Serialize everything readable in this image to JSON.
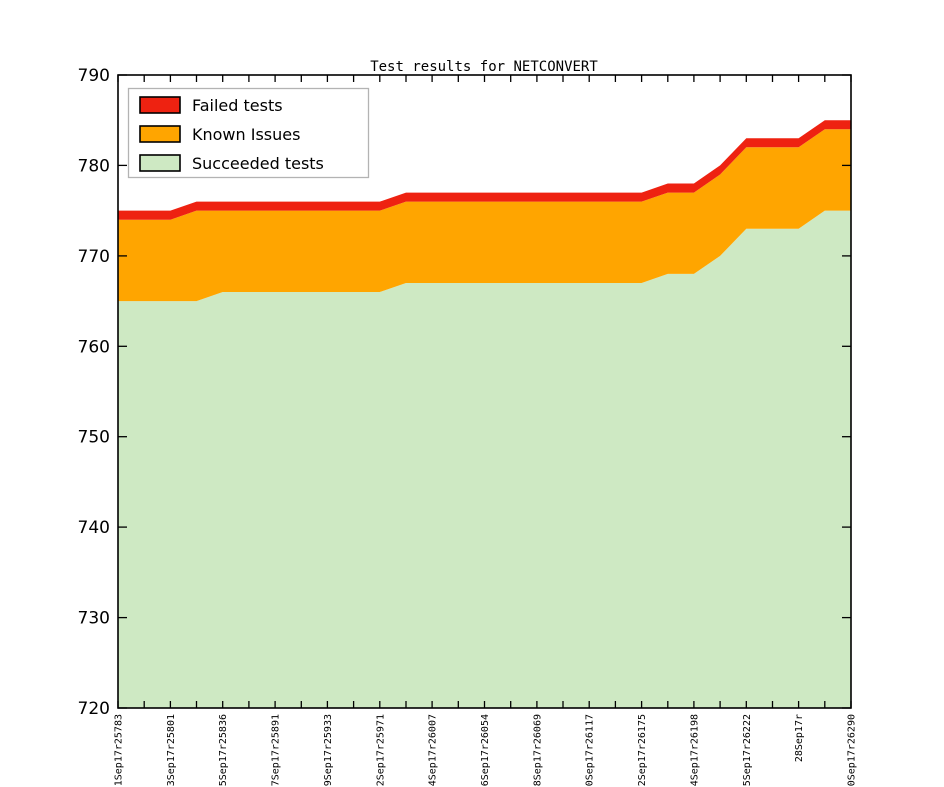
{
  "chart_data": {
    "type": "area",
    "stacked": true,
    "title": "Test results for NETCONVERT",
    "xlabel": "",
    "ylabel": "",
    "ylim": [
      720,
      790
    ],
    "y_ticks": [
      720,
      730,
      740,
      750,
      760,
      770,
      780,
      790
    ],
    "grid": false,
    "x_tick_labels": [
      "1Sep17r25783",
      "3Sep17r25801",
      "5Sep17r25836",
      "7Sep17r25891",
      "9Sep17r25933",
      "2Sep17r25971",
      "4Sep17r26007",
      "6Sep17r26054",
      "8Sep17r26069",
      "0Sep17r26117",
      "2Sep17r26175",
      "4Sep17r26198",
      "5Sep17r26222",
      "28Sep17r",
      "0Sep17r26290"
    ],
    "x_tick_label_rotation_deg": 90,
    "x_points_per_labeled_tick": 2,
    "n_points": 29,
    "series": [
      {
        "name": "Failed tests",
        "color": "#ee2211",
        "values": [
          1,
          1,
          1,
          1,
          1,
          1,
          1,
          1,
          1,
          1,
          1,
          1,
          1,
          1,
          1,
          1,
          1,
          1,
          1,
          1,
          1,
          1,
          1,
          1,
          1,
          1,
          1,
          1,
          1
        ]
      },
      {
        "name": "Known Issues",
        "color": "#ffa500",
        "values": [
          9,
          9,
          9,
          10,
          9,
          9,
          9,
          9,
          9,
          9,
          9,
          9,
          9,
          9,
          9,
          9,
          9,
          9,
          9,
          9,
          9,
          9,
          9,
          9,
          9,
          9,
          9,
          9,
          9
        ]
      },
      {
        "name": "Succeeded tests",
        "color": "#cee9c3",
        "values": [
          765,
          765,
          765,
          765,
          766,
          766,
          766,
          766,
          766,
          766,
          766,
          767,
          767,
          767,
          767,
          767,
          767,
          767,
          767,
          767,
          767,
          768,
          768,
          770,
          773,
          773,
          773,
          775,
          775
        ]
      }
    ],
    "legend": {
      "position": "upper left",
      "entries": [
        "Failed tests",
        "Known Issues",
        "Succeeded tests"
      ]
    },
    "axis_color": "#000000",
    "legend_border_color": "#b3b3b3"
  }
}
